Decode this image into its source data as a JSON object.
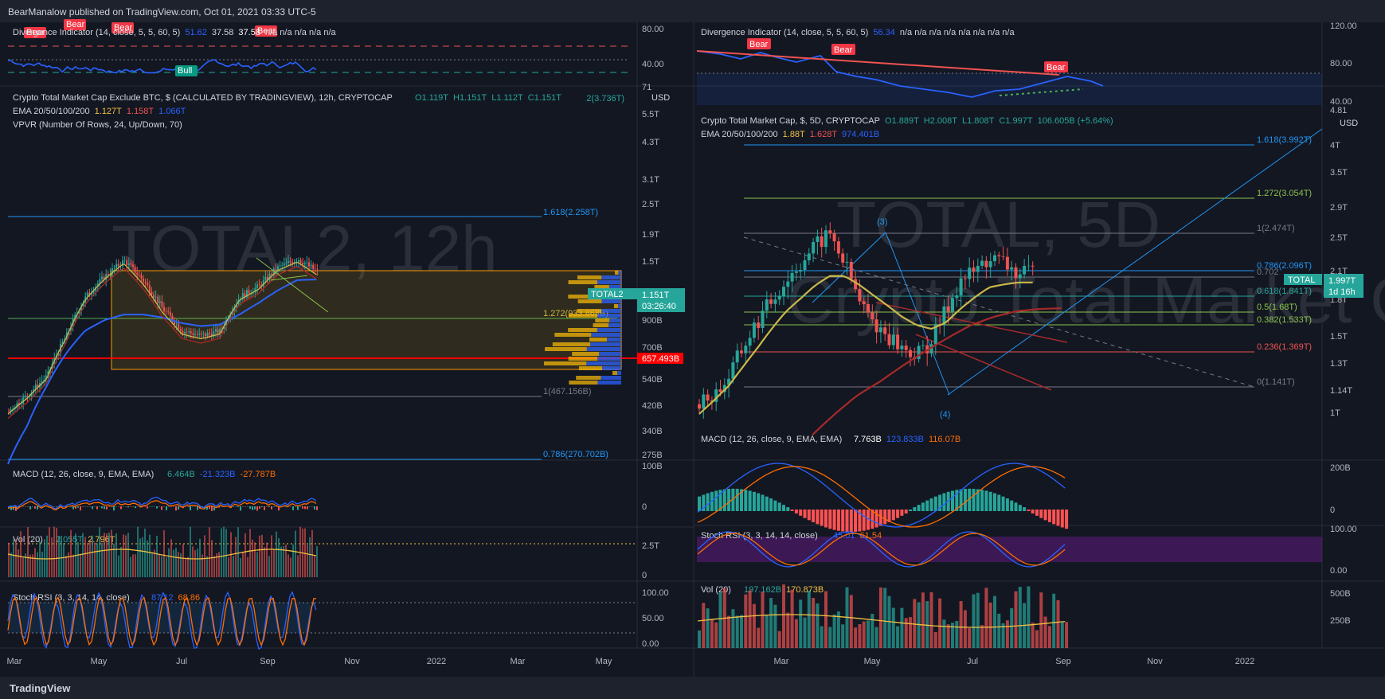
{
  "header": {
    "publisher": "BearManalow published on TradingView.com, Oct 01, 2021 03:33 UTC-5"
  },
  "footer": {
    "brand": "TradingView"
  },
  "colors": {
    "bg": "#131722",
    "panel_border": "#2a2e39",
    "up": "#26a69a",
    "down": "#ef5350",
    "ema20": "#c9b84a",
    "ema50": "#a52a2a",
    "ema100": "#2962ff",
    "fib_blue": "#2196f3",
    "fib_green": "#4caf50",
    "bear_badge": "#f23645"
  },
  "left": {
    "watermark": "TOTAL2, 12h",
    "osc_legend_title": "Divergence Indicator (14, close, 5, 5, 60, 5)",
    "osc_legend_vals": [
      "51.62",
      "37.58",
      "37.58",
      "n/a n/a n/a n/a n/a"
    ],
    "main_legend": "Crypto Total Market Cap Exclude BTC, $ (CALCULATED BY TRADINGVIEW), 12h, CRYPTOCAP",
    "ohlc": [
      "O1.119T",
      "H1.151T",
      "L1.112T",
      "C1.151T"
    ],
    "ema_title": "EMA 20/50/100/200",
    "ema_vals": [
      "1.127T",
      "1.158T",
      "1.066T"
    ],
    "vpvr": "VPVR (Number Of Rows, 24, Up/Down, 70)",
    "fibs": [
      {
        "text": "1.618(2.258T)",
        "color": "#2196f3"
      },
      {
        "text": "1.272(933.868B)",
        "color": "#c9b84a"
      },
      {
        "text": "1(467.156B)",
        "color": "#787b86"
      },
      {
        "text": "0.786(270.702B)",
        "color": "#2196f3"
      },
      {
        "text": "2(3.736T)",
        "color": "#26a69a"
      }
    ],
    "price_ticks": [
      "71",
      "5.5T",
      "4.3T",
      "3.1T",
      "2.5T",
      "1.9T",
      "1.5T",
      "900B",
      "700B",
      "540B",
      "420B",
      "340B",
      "275B"
    ],
    "usd": "USD",
    "osc_ticks": [
      "80.00",
      "40.00"
    ],
    "badges": [
      "Bear",
      "Bear",
      "Bear",
      "Bear",
      "Bull"
    ],
    "price_tag": {
      "symbol": "TOTAL2",
      "price": "1.151T",
      "countdown": "03:26:40"
    },
    "red_tag": "657.493B",
    "macd_legend": "MACD (12, 26, close, 9, EMA, EMA)",
    "macd_vals": [
      "6.464B",
      "-21.323B",
      "-27.787B"
    ],
    "macd_ticks": [
      "100B",
      "0"
    ],
    "vol_legend": "Vol (20)",
    "vol_vals": [
      "2.055T",
      "2.796T"
    ],
    "vol_ticks": [
      "2.5T",
      "0"
    ],
    "stoch_legend": "Stoch RSI (3, 3, 14, 14, close)",
    "stoch_vals": [
      "87.12",
      "68.86"
    ],
    "stoch_ticks": [
      "100.00",
      "50.00",
      "0.00"
    ],
    "x_ticks": [
      "Mar",
      "May",
      "Jul",
      "Sep",
      "Nov",
      "2022",
      "Mar",
      "May"
    ]
  },
  "right": {
    "watermark": "TOTAL, 5D",
    "watermark2": "Crypto Total Market Cap, $",
    "osc_legend_title": "Divergence Indicator (14, close, 5, 5, 60, 5)",
    "osc_legend_vals": [
      "56.34",
      "n/a n/a n/a n/a n/a n/a n/a n/a"
    ],
    "osc_ticks": [
      "120.00",
      "80.00",
      "40.00"
    ],
    "badges": [
      "Bear",
      "Bear",
      "Bear"
    ],
    "main_legend": "Crypto Total Market Cap, $, 5D, CRYPTOCAP",
    "ohlc": [
      "O1.889T",
      "H2.008T",
      "L1.808T",
      "C1.997T",
      "106.605B (+5.64%)"
    ],
    "ema_title": "EMA 20/50/100/200",
    "ema_vals": [
      "1.88T",
      "1.628T",
      "974.401B"
    ],
    "fibs": [
      {
        "text": "1.618(3.992T)",
        "color": "#2196f3"
      },
      {
        "text": "1.272(3.054T)",
        "color": "#8bc34a"
      },
      {
        "text": "1(2.474T)",
        "color": "#787b86"
      },
      {
        "text": "0.786(2.096T)",
        "color": "#2196f3"
      },
      {
        "text": "0.702",
        "color": "#787b86"
      },
      {
        "text": "0.618(1.841T)",
        "color": "#26a69a"
      },
      {
        "text": "0.5(1.68T)",
        "color": "#8bc34a"
      },
      {
        "text": "0.382(1.533T)",
        "color": "#8bc34a"
      },
      {
        "text": "0.236(1.369T)",
        "color": "#ef5350"
      },
      {
        "text": "0(1.141T)",
        "color": "#787b86"
      }
    ],
    "price_ticks": [
      "4.81",
      "4T",
      "3.5T",
      "2.9T",
      "2.5T",
      "2.1T",
      "1.8T",
      "1.5T",
      "1.3T",
      "1.14T",
      "1T"
    ],
    "usd": "USD",
    "price_tag": {
      "symbol": "TOTAL",
      "price": "1.997T",
      "countdown": "1d 16h"
    },
    "waves": [
      "(3)",
      "(4)"
    ],
    "macd_legend": "MACD (12, 26, close, 9, EMA, EMA)",
    "macd_vals": [
      "7.763B",
      "123.833B",
      "116.07B"
    ],
    "macd_ticks": [
      "200B",
      "0"
    ],
    "stoch_legend": "Stoch RSI (3, 3, 14, 14, close)",
    "stoch_vals": [
      "45.01",
      "61.54"
    ],
    "stoch_ticks": [
      "100.00",
      "0.00"
    ],
    "vol_legend": "Vol (20)",
    "vol_vals": [
      "197.162B",
      "170.873B"
    ],
    "vol_ticks": [
      "500B",
      "250B"
    ],
    "x_ticks": [
      "Mar",
      "May",
      "Jul",
      "Sep",
      "Nov",
      "2022"
    ]
  },
  "chart_data": [
    {
      "type": "candlestick",
      "title": "Crypto Total Market Cap Exclude BTC, $ (CALCULATED BY TRADINGVIEW), 12h, CRYPTOCAP",
      "x": [
        "Mar",
        "May",
        "Jul",
        "Sep"
      ],
      "close_path": [
        300,
        350,
        420,
        620,
        900,
        1100,
        1280,
        1050,
        800,
        650,
        620,
        650,
        900,
        1000,
        1200,
        1300,
        1151
      ],
      "ema100_path": [
        180,
        260,
        380,
        520,
        650,
        720,
        760,
        760,
        740,
        700,
        680,
        690,
        760,
        850,
        960,
        1060,
        1066
      ],
      "last": 1.151,
      "unit": "T (USD)"
    },
    {
      "type": "candlestick",
      "title": "Crypto Total Market Cap, $, 5D, CRYPTOCAP",
      "x": [
        "Mar",
        "May",
        "Jul",
        "Sep"
      ],
      "close_path": [
        0.95,
        1.0,
        1.1,
        1.3,
        1.5,
        1.7,
        1.9,
        2.1,
        2.3,
        2.474,
        2.1,
        1.7,
        1.5,
        1.4,
        1.3,
        1.25,
        1.35,
        1.6,
        1.9,
        2.0,
        2.15,
        2.1,
        1.95,
        1.997
      ],
      "ema20_path": [
        0.9,
        0.97,
        1.05,
        1.17,
        1.3,
        1.45,
        1.6,
        1.72,
        1.85,
        1.95,
        1.95,
        1.86,
        1.75,
        1.65,
        1.55,
        1.48,
        1.45,
        1.5,
        1.62,
        1.73,
        1.83,
        1.86,
        1.88,
        1.88
      ],
      "ema50_path": [
        0.8,
        0.9,
        1.0,
        1.08,
        1.18,
        1.28,
        1.38,
        1.48,
        1.55,
        1.6,
        1.62,
        1.628
      ],
      "last": 1.997,
      "unit": "T (USD)"
    }
  ]
}
